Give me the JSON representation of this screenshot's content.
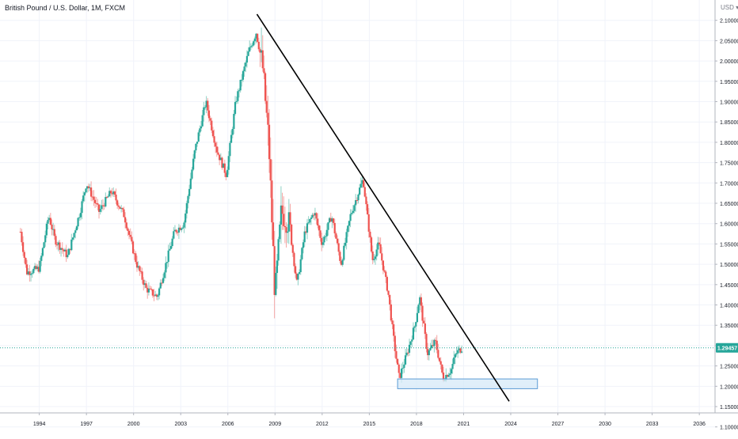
{
  "header": {
    "symbol_title": "British Pound / U.S. Dollar, 1M, FXCM",
    "currency": "USD"
  },
  "chart_data": {
    "type": "candlestick",
    "title": "British Pound / U.S. Dollar, 1M, FXCM",
    "y_axis": {
      "ticks": [
        "2.10000",
        "2.05000",
        "2.00000",
        "1.95000",
        "1.90000",
        "1.85000",
        "1.80000",
        "1.75000",
        "1.70000",
        "1.65000",
        "1.60000",
        "1.55000",
        "1.50000",
        "1.45000",
        "1.40000",
        "1.35000",
        "1.30000",
        "1.25000",
        "1.20000",
        "1.15000",
        "1.10000"
      ],
      "range": [
        1.08,
        2.15
      ]
    },
    "x_axis": {
      "ticks": [
        "1994",
        "1997",
        "2000",
        "2003",
        "2006",
        "2009",
        "2012",
        "2015",
        "2018",
        "2021",
        "2024",
        "2027",
        "2030",
        "2033",
        "2036"
      ],
      "range": [
        1991.5,
        2037.0
      ]
    },
    "last_price": {
      "value": 1.29457,
      "label": "1.29457",
      "color": "#26a69a"
    },
    "colors": {
      "up": "#26a69a",
      "down": "#ef5350",
      "grid": "#f0f3fa",
      "trendline": "#000000",
      "zone_fill": "#d6e9f8",
      "zone_stroke": "#5b9bd5"
    },
    "price_anchors": [
      [
        1992.8,
        1.58
      ],
      [
        1993.2,
        1.48
      ],
      [
        1994.0,
        1.49
      ],
      [
        1994.6,
        1.62
      ],
      [
        1995.0,
        1.56
      ],
      [
        1995.8,
        1.52
      ],
      [
        1996.6,
        1.63
      ],
      [
        1997.0,
        1.7
      ],
      [
        1997.8,
        1.63
      ],
      [
        1998.6,
        1.68
      ],
      [
        1999.4,
        1.62
      ],
      [
        2000.2,
        1.5
      ],
      [
        2000.8,
        1.44
      ],
      [
        2001.5,
        1.42
      ],
      [
        2002.6,
        1.58
      ],
      [
        2003.2,
        1.6
      ],
      [
        2003.9,
        1.78
      ],
      [
        2004.6,
        1.9
      ],
      [
        2005.3,
        1.78
      ],
      [
        2005.9,
        1.72
      ],
      [
        2006.5,
        1.9
      ],
      [
        2007.3,
        2.02
      ],
      [
        2007.8,
        2.07
      ],
      [
        2008.2,
        1.99
      ],
      [
        2008.6,
        1.8
      ],
      [
        2009.0,
        1.42
      ],
      [
        2009.4,
        1.63
      ],
      [
        2009.9,
        1.6
      ],
      [
        2010.4,
        1.45
      ],
      [
        2010.9,
        1.58
      ],
      [
        2011.5,
        1.63
      ],
      [
        2012.0,
        1.55
      ],
      [
        2012.6,
        1.62
      ],
      [
        2013.2,
        1.5
      ],
      [
        2013.8,
        1.62
      ],
      [
        2014.6,
        1.71
      ],
      [
        2015.2,
        1.51
      ],
      [
        2015.6,
        1.55
      ],
      [
        2016.2,
        1.43
      ],
      [
        2016.6,
        1.3
      ],
      [
        2016.9,
        1.22
      ],
      [
        2017.4,
        1.28
      ],
      [
        2017.9,
        1.35
      ],
      [
        2018.2,
        1.42
      ],
      [
        2018.7,
        1.28
      ],
      [
        2019.2,
        1.31
      ],
      [
        2019.7,
        1.22
      ],
      [
        2020.2,
        1.24
      ],
      [
        2020.5,
        1.28
      ],
      [
        2020.9,
        1.29457
      ]
    ],
    "trendline": {
      "from": {
        "x": 2007.85,
        "y": 2.115
      },
      "to": {
        "x": 2023.9,
        "y": 1.163
      }
    },
    "support_zone": {
      "x_start": 2016.8,
      "x_end": 2025.7,
      "y_low": 1.194,
      "y_high": 1.218
    }
  }
}
